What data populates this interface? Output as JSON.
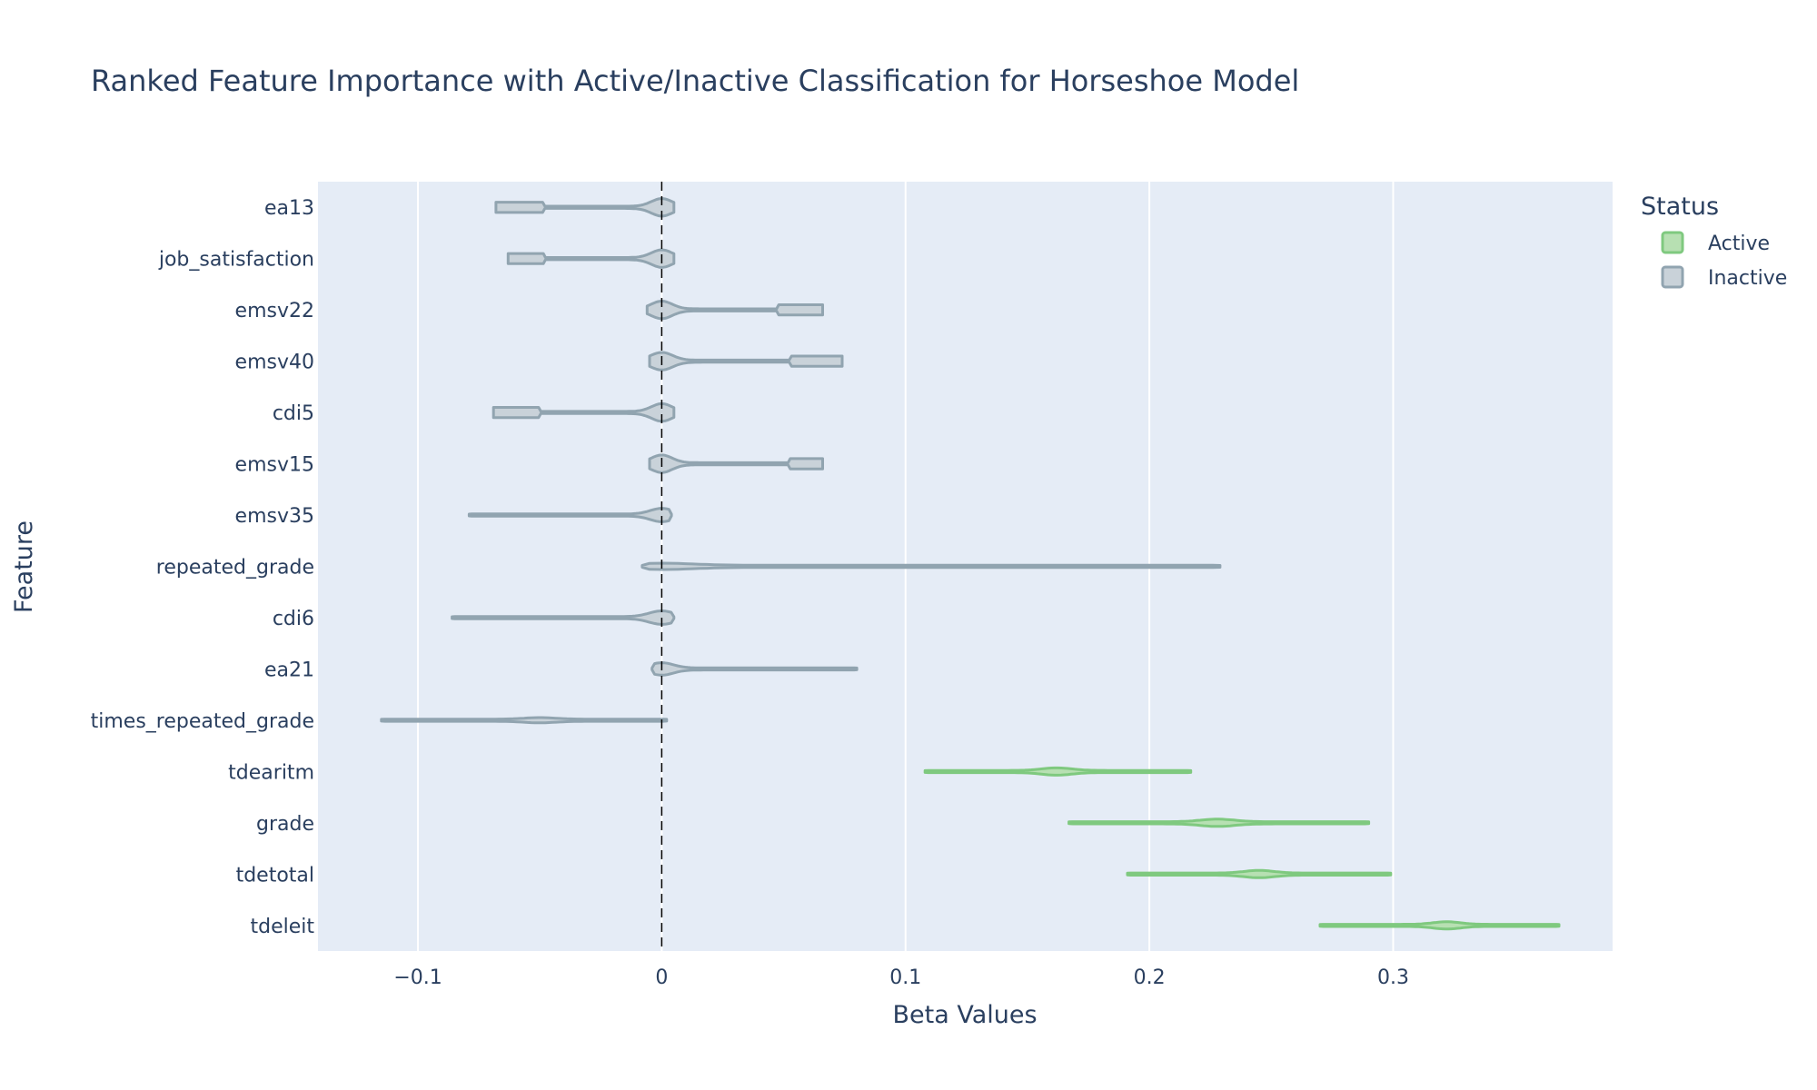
{
  "chart_data": {
    "type": "violin",
    "title": "Ranked Feature Importance with Active/Inactive Classification for Horseshoe Model",
    "xlabel": "Beta Values",
    "ylabel": "Feature",
    "xlim": [
      -0.141,
      0.39
    ],
    "xticks": [
      {
        "value": -0.1,
        "label": "−0.1"
      },
      {
        "value": 0,
        "label": "0"
      },
      {
        "value": 0.1,
        "label": "0.1"
      },
      {
        "value": 0.2,
        "label": "0.2"
      },
      {
        "value": 0.3,
        "label": "0.3"
      }
    ],
    "zero_line": {
      "value": 0,
      "style": "dashed",
      "color": "#000000"
    },
    "grid": true,
    "plot_bgcolor": "#e5ecf6",
    "legend": {
      "title": "Status",
      "position": "top-right",
      "items": [
        {
          "name": "Active",
          "fill": "#b7e0b2",
          "line": "#7fc97f"
        },
        {
          "name": "Inactive",
          "fill": "#c9d2d9",
          "line": "#91a4b0"
        }
      ]
    },
    "features": [
      {
        "name": "ea13",
        "status": "Inactive",
        "min": -0.068,
        "max": 0.005,
        "mode": 0.0,
        "peak_half_width": 0.3,
        "tail_from": -0.048,
        "tail_half_width": 0.2
      },
      {
        "name": "job_satisfaction",
        "status": "Inactive",
        "min": -0.063,
        "max": 0.005,
        "mode": 0.0,
        "peak_half_width": 0.3,
        "tail_from": -0.048,
        "tail_half_width": 0.2
      },
      {
        "name": "emsv22",
        "status": "Inactive",
        "min": -0.006,
        "max": 0.066,
        "mode": 0.0,
        "peak_half_width": 0.3,
        "tail_from": 0.048,
        "tail_half_width": 0.2
      },
      {
        "name": "emsv40",
        "status": "Inactive",
        "min": -0.005,
        "max": 0.074,
        "mode": 0.0,
        "peak_half_width": 0.3,
        "tail_from": 0.053,
        "tail_half_width": 0.2
      },
      {
        "name": "cdi5",
        "status": "Inactive",
        "min": -0.069,
        "max": 0.005,
        "mode": 0.0,
        "peak_half_width": 0.3,
        "tail_from": -0.05,
        "tail_half_width": 0.2
      },
      {
        "name": "emsv15",
        "status": "Inactive",
        "min": -0.005,
        "max": 0.066,
        "mode": 0.0,
        "peak_half_width": 0.3,
        "tail_from": 0.052,
        "tail_half_width": 0.2
      },
      {
        "name": "emsv35",
        "status": "Inactive",
        "min": -0.079,
        "max": 0.004,
        "mode": 0.0,
        "peak_half_width": 0.22,
        "tail_from": null,
        "tail_half_width": 0
      },
      {
        "name": "repeated_grade",
        "status": "Inactive",
        "min": -0.008,
        "max": 0.229,
        "mode": 0.0,
        "peak_half_width": 0.08,
        "tail_from": null,
        "tail_half_width": 0
      },
      {
        "name": "cdi6",
        "status": "Inactive",
        "min": -0.086,
        "max": 0.005,
        "mode": 0.0,
        "peak_half_width": 0.22,
        "tail_from": null,
        "tail_half_width": 0
      },
      {
        "name": "ea21",
        "status": "Inactive",
        "min": -0.004,
        "max": 0.08,
        "mode": 0.0,
        "peak_half_width": 0.2,
        "tail_from": null,
        "tail_half_width": 0
      },
      {
        "name": "times_repeated_grade",
        "status": "Inactive",
        "min": -0.115,
        "max": 0.002,
        "mode": -0.05,
        "peak_half_width": 0.06,
        "tail_from": null,
        "tail_half_width": 0
      },
      {
        "name": "tdearitm",
        "status": "Active",
        "min": 0.108,
        "max": 0.217,
        "mode": 0.162,
        "peak_half_width": 0.1,
        "tail_from": null,
        "tail_half_width": 0
      },
      {
        "name": "grade",
        "status": "Active",
        "min": 0.167,
        "max": 0.29,
        "mode": 0.228,
        "peak_half_width": 0.1,
        "tail_from": null,
        "tail_half_width": 0
      },
      {
        "name": "tdetotal",
        "status": "Active",
        "min": 0.191,
        "max": 0.299,
        "mode": 0.245,
        "peak_half_width": 0.1,
        "tail_from": null,
        "tail_half_width": 0
      },
      {
        "name": "tdeleit",
        "status": "Active",
        "min": 0.27,
        "max": 0.368,
        "mode": 0.322,
        "peak_half_width": 0.1,
        "tail_from": null,
        "tail_half_width": 0
      }
    ]
  }
}
